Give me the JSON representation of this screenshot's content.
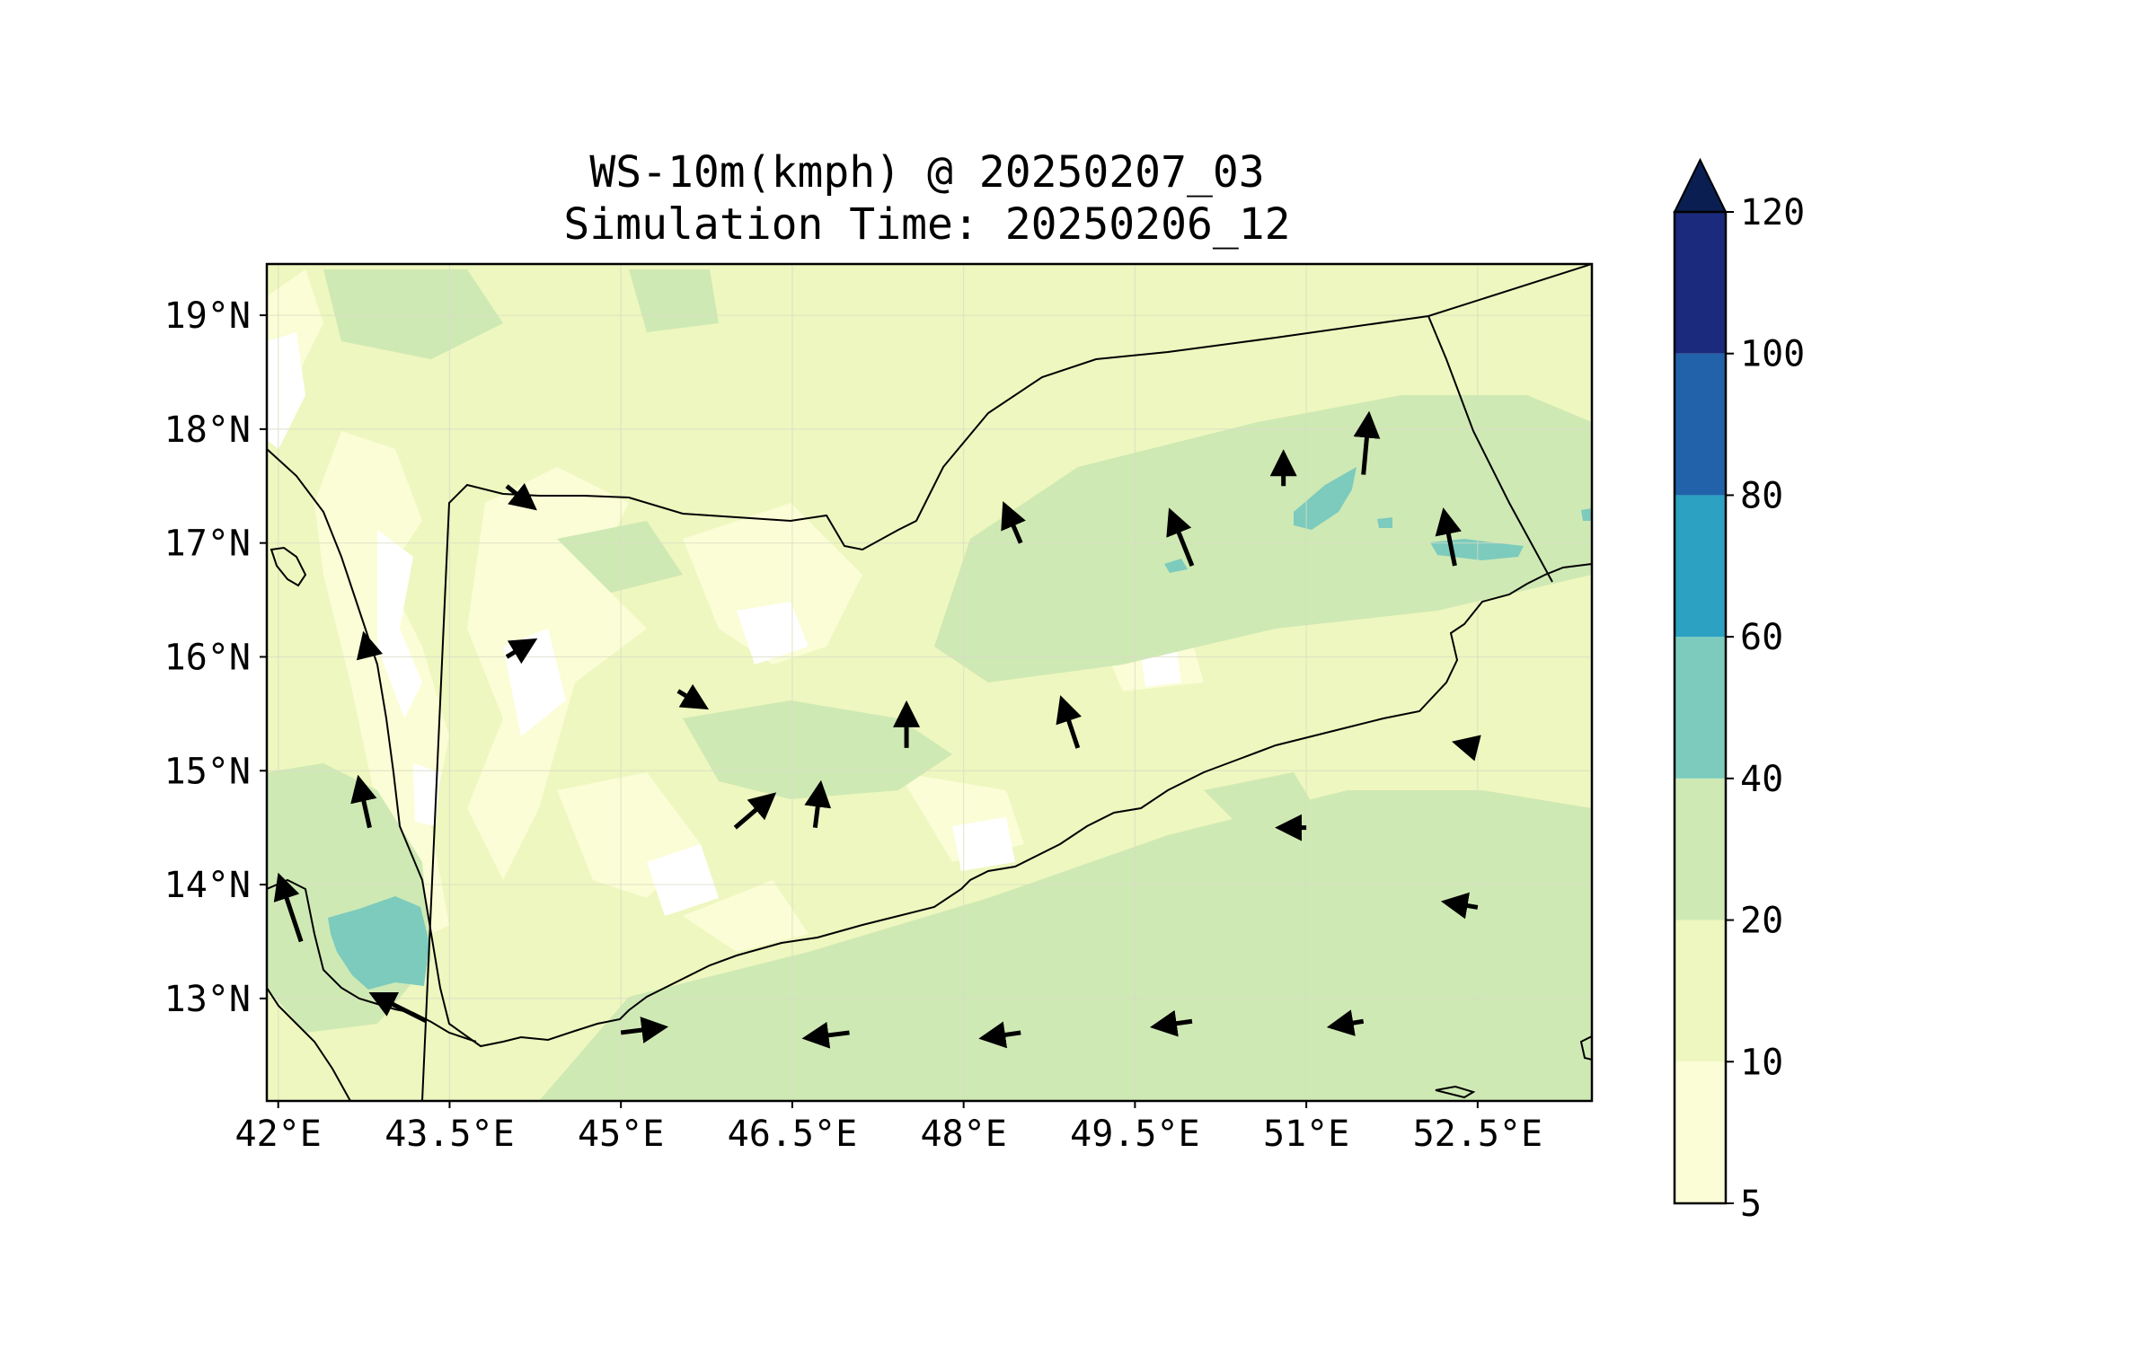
{
  "title": {
    "line1": "WS-10m(kmph) @ 20250207_03",
    "line2": "Simulation Time: 20250206_12"
  },
  "map": {
    "lon_range": [
      41.9,
      53.5
    ],
    "lat_range": [
      12.1,
      19.45
    ],
    "lon_ticks": [
      42,
      43.5,
      45,
      46.5,
      48,
      49.5,
      51,
      52.5
    ],
    "lon_tick_labels": [
      "42°E",
      "43.5°E",
      "45°E",
      "46.5°E",
      "48°E",
      "49.5°E",
      "51°E",
      "52.5°E"
    ],
    "lat_ticks": [
      13,
      14,
      15,
      16,
      17,
      18,
      19
    ],
    "lat_tick_labels": [
      "13°N",
      "14°N",
      "15°N",
      "16°N",
      "17°N",
      "18°N",
      "19°N"
    ],
    "gridlines": true,
    "background_color": "#eef7bf"
  },
  "colorbar": {
    "levels": [
      5,
      10,
      20,
      40,
      60,
      80,
      100,
      120
    ],
    "labels": [
      "5",
      "10",
      "20",
      "40",
      "60",
      "80",
      "100",
      "120"
    ],
    "colors": [
      "#fbfdd6",
      "#eef7bf",
      "#cfe9b4",
      "#7ccbbd",
      "#2ca1c2",
      "#2162aa",
      "#1c2a7d"
    ],
    "extend_color": "#0b1e52",
    "extend": "max",
    "placement": "right"
  },
  "chart_data": {
    "type": "map",
    "variable": "WS-10m(kmph)",
    "valid_time": "20250207_03",
    "simulation_time": "20250206_12",
    "wind_vectors": [
      {
        "lon": 42.8,
        "lat": 16.0,
        "dx": -0.1,
        "dy": 0.4
      },
      {
        "lon": 42.8,
        "lat": 14.5,
        "dx": -0.2,
        "dy": 0.9
      },
      {
        "lon": 42.2,
        "lat": 13.5,
        "dx": -0.4,
        "dy": 1.2
      },
      {
        "lon": 43.3,
        "lat": 12.8,
        "dx": -1.0,
        "dy": 0.5
      },
      {
        "lon": 44.0,
        "lat": 17.5,
        "dx": 0.5,
        "dy": -0.4
      },
      {
        "lon": 44.0,
        "lat": 16.0,
        "dx": 0.5,
        "dy": 0.3
      },
      {
        "lon": 45.5,
        "lat": 15.7,
        "dx": 0.5,
        "dy": -0.3
      },
      {
        "lon": 46.0,
        "lat": 14.5,
        "dx": 0.7,
        "dy": 0.6
      },
      {
        "lon": 46.7,
        "lat": 14.5,
        "dx": 0.1,
        "dy": 0.8
      },
      {
        "lon": 47.5,
        "lat": 15.2,
        "dx": 0.0,
        "dy": 0.8
      },
      {
        "lon": 48.5,
        "lat": 17.0,
        "dx": -0.3,
        "dy": 0.7
      },
      {
        "lon": 49.0,
        "lat": 15.2,
        "dx": -0.3,
        "dy": 0.9
      },
      {
        "lon": 50.0,
        "lat": 16.8,
        "dx": -0.4,
        "dy": 1.0
      },
      {
        "lon": 50.8,
        "lat": 17.5,
        "dx": 0.0,
        "dy": 0.6
      },
      {
        "lon": 51.5,
        "lat": 17.6,
        "dx": 0.1,
        "dy": 1.1
      },
      {
        "lon": 52.3,
        "lat": 16.8,
        "dx": -0.2,
        "dy": 1.0
      },
      {
        "lon": 45.0,
        "lat": 12.7,
        "dx": 0.8,
        "dy": 0.1
      },
      {
        "lon": 47.0,
        "lat": 12.7,
        "dx": -0.8,
        "dy": -0.1
      },
      {
        "lon": 48.5,
        "lat": 12.7,
        "dx": -0.7,
        "dy": -0.1
      },
      {
        "lon": 50.0,
        "lat": 12.8,
        "dx": -0.7,
        "dy": -0.1
      },
      {
        "lon": 51.5,
        "lat": 12.8,
        "dx": -0.6,
        "dy": -0.1
      },
      {
        "lon": 52.5,
        "lat": 13.8,
        "dx": -0.6,
        "dy": 0.1
      },
      {
        "lon": 51.0,
        "lat": 14.5,
        "dx": -0.5,
        "dy": 0.0
      },
      {
        "lon": 52.5,
        "lat": 15.2,
        "dx": -0.4,
        "dy": 0.1
      }
    ]
  }
}
